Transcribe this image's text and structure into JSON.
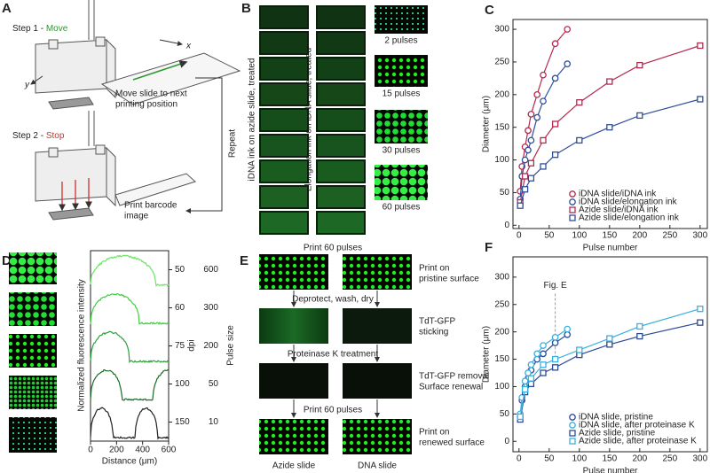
{
  "panel_a": {
    "label": "A",
    "step1": "Step 1 - ",
    "step1_action": "Move",
    "step2": "Step 2 - ",
    "step2_action": "Stop",
    "axis_x": "x",
    "axis_y": "y",
    "move_text": [
      "Move slide to next",
      "printing position"
    ],
    "repeat": "Repeat",
    "print_text": [
      "Print barcode",
      "image"
    ]
  },
  "panel_b": {
    "label": "B",
    "column_1": "iDNA ink on azide slide, treated",
    "column_2": "Elongation ink on iDNA slide, treated",
    "thumbnails": [
      "2 pulses",
      "15 pulses",
      "30 pulses",
      "60 pulses"
    ]
  },
  "panel_d": {
    "label": "D",
    "ylabel": "Normalized fluorescence intensity",
    "xlabel": "Distance (μm)",
    "xticks": [
      0,
      200,
      400,
      600
    ],
    "dpi_label": "dpi",
    "dpi": [
      50,
      60,
      75,
      100,
      150
    ],
    "pulse_label": "Pulse size",
    "pulse_size": [
      600,
      300,
      200,
      50,
      10
    ]
  },
  "panel_e": {
    "label": "E",
    "step_1": "Print 60 pulses",
    "note_1": [
      "Print on",
      "pristine surface"
    ],
    "step_2": "Deprotect, wash, dry",
    "note_2": [
      "TdT-GFP",
      "sticking"
    ],
    "step_3": "Proteinase K treatment",
    "note_3": [
      "TdT-GFP removal",
      "Surface renewal"
    ],
    "step_4": "Print 60 pulses",
    "note_4": [
      "Print on",
      "renewed surface"
    ],
    "column_1": "Azide slide",
    "column_2": "DNA slide"
  },
  "chart_data": [
    {
      "type": "line",
      "panel_label": "C",
      "xlabel": "Pulse number",
      "ylabel": "Diameter (μm)",
      "xlim": [
        -10,
        312
      ],
      "ylim": [
        -5,
        315
      ],
      "xticks": [
        0,
        50,
        100,
        150,
        200,
        250,
        300
      ],
      "yticks": [
        0,
        50,
        100,
        150,
        200,
        250,
        300
      ],
      "legend": "lower right",
      "series": [
        {
          "name": "iDNA slide/iDNA ink",
          "color": "#b5294e",
          "marker": "circle",
          "x": [
            2,
            5,
            10,
            15,
            20,
            30,
            40,
            60,
            80
          ],
          "values": [
            52,
            90,
            120,
            145,
            170,
            200,
            230,
            278,
            300
          ]
        },
        {
          "name": "iDNA slide/elongation ink",
          "color": "#2f4f9c",
          "marker": "circle",
          "x": [
            2,
            5,
            10,
            15,
            20,
            30,
            40,
            60,
            80
          ],
          "values": [
            40,
            75,
            100,
            115,
            130,
            165,
            190,
            225,
            247
          ]
        },
        {
          "name": "Azide slide/iDNA ink",
          "color": "#b5294e",
          "marker": "square",
          "x": [
            2,
            10,
            20,
            40,
            60,
            100,
            150,
            200,
            300
          ],
          "values": [
            35,
            75,
            95,
            130,
            155,
            188,
            220,
            245,
            275
          ]
        },
        {
          "name": "Azide slide/elongation ink",
          "color": "#2f4f9c",
          "marker": "square",
          "x": [
            2,
            10,
            20,
            40,
            60,
            100,
            150,
            200,
            300
          ],
          "values": [
            30,
            55,
            72,
            90,
            108,
            130,
            150,
            168,
            193
          ]
        }
      ]
    },
    {
      "type": "line",
      "panel_label": "F",
      "xlabel": "Pulse number",
      "ylabel": "Diameter (μm)",
      "xlim": [
        -10,
        312
      ],
      "ylim": [
        -19,
        337
      ],
      "xticks": [
        0,
        50,
        100,
        150,
        200,
        250,
        300
      ],
      "yticks": [
        0,
        50,
        100,
        150,
        200,
        250,
        300
      ],
      "legend": "lower right",
      "annotation": {
        "text": "Fig. E",
        "x": 60
      },
      "series": [
        {
          "name": "iDNA slide, pristine",
          "color": "#2b4a9a",
          "marker": "circle",
          "x": [
            2,
            5,
            10,
            15,
            20,
            30,
            40,
            60,
            80
          ],
          "values": [
            45,
            75,
            100,
            115,
            130,
            150,
            160,
            180,
            195
          ]
        },
        {
          "name": "iDNA slide, after proteinase K",
          "color": "#3ab0e0",
          "marker": "circle",
          "x": [
            2,
            5,
            10,
            15,
            20,
            30,
            40,
            60,
            80
          ],
          "values": [
            50,
            80,
            110,
            125,
            140,
            160,
            175,
            190,
            205
          ]
        },
        {
          "name": "Azide slide, pristine",
          "color": "#2b4a9a",
          "marker": "square",
          "x": [
            2,
            10,
            20,
            40,
            60,
            100,
            150,
            200,
            300
          ],
          "values": [
            40,
            90,
            105,
            125,
            135,
            158,
            177,
            192,
            217
          ]
        },
        {
          "name": "Azide slide, after proteinase K",
          "color": "#3ab0e0",
          "marker": "square",
          "x": [
            2,
            10,
            20,
            40,
            60,
            100,
            150,
            200,
            300
          ],
          "values": [
            45,
            95,
            115,
            140,
            150,
            167,
            188,
            210,
            242
          ]
        }
      ]
    }
  ]
}
